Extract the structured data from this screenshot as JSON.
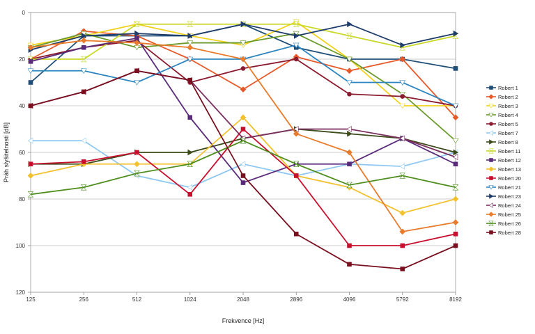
{
  "chart_data": {
    "type": "line",
    "xlabel": "Frekvence [Hz]",
    "ylabel": "Práh slyšitelnosti [dB]",
    "x_tick_labels": [
      "125",
      "256",
      "512",
      "1024",
      "2048",
      "2896",
      "4096",
      "5792",
      "8192"
    ],
    "y_tick_labels": [
      "0",
      "20",
      "40",
      "60",
      "80",
      "100",
      "120"
    ],
    "y_ticks": [
      0,
      20,
      40,
      60,
      80,
      100,
      120
    ],
    "ylim": [
      0,
      120
    ],
    "y_inverted": true,
    "grid": "horizontal",
    "legend_placement": "right",
    "series": [
      {
        "name": "Robert 1",
        "color": "#1F4E79",
        "marker": "square",
        "values": [
          30,
          10,
          10,
          10,
          5,
          15,
          20,
          20,
          24
        ]
      },
      {
        "name": "Robert 2",
        "color": "#E8592A",
        "marker": "diamond",
        "values": [
          20,
          8,
          10,
          20,
          33,
          19,
          25,
          20,
          45
        ]
      },
      {
        "name": "Robert 3",
        "color": "#F2D21E",
        "marker": "triangle",
        "values": [
          14,
          10,
          5,
          10,
          14,
          4,
          20,
          40,
          40
        ]
      },
      {
        "name": "Robert 4",
        "color": "#6A9A2A",
        "marker": "triangle",
        "values": [
          15,
          9,
          15,
          13,
          13,
          9,
          20,
          35,
          55
        ]
      },
      {
        "name": "Robert 5",
        "color": "#8B1A2E",
        "marker": "circle",
        "values": [
          20,
          15,
          12,
          30,
          24,
          20,
          35,
          36,
          40
        ]
      },
      {
        "name": "Robert 7",
        "color": "#8EC8F2",
        "marker": "triangle-left",
        "values": [
          55,
          55,
          70,
          75,
          65,
          70,
          65,
          66,
          60
        ]
      },
      {
        "name": "Robert 8",
        "color": "#3B4A18",
        "marker": "triangle-right",
        "values": [
          65,
          65,
          60,
          60,
          54,
          50,
          52,
          54,
          60
        ]
      },
      {
        "name": "Robert 11",
        "color": "#C9D828",
        "marker": "hourglass",
        "values": [
          20,
          20,
          5,
          5,
          5,
          5,
          10,
          15,
          10
        ]
      },
      {
        "name": "Robert 12",
        "color": "#5A2B7A",
        "marker": "square",
        "values": [
          21,
          15,
          11,
          45,
          73,
          65,
          65,
          54,
          65
        ]
      },
      {
        "name": "Robert 13",
        "color": "#F2C12E",
        "marker": "diamond",
        "values": [
          70,
          65,
          65,
          65,
          45,
          70,
          75,
          86,
          80
        ]
      },
      {
        "name": "Robert 20",
        "color": "#C8102E",
        "marker": "square",
        "values": [
          65,
          64,
          60,
          78,
          50,
          70,
          100,
          100,
          95
        ]
      },
      {
        "name": "Robert 21",
        "color": "#2E86C1",
        "marker": "triangle",
        "values": [
          25,
          25,
          30,
          20,
          20,
          14,
          30,
          30,
          40
        ]
      },
      {
        "name": "Robert 23",
        "color": "#1E3D6B",
        "marker": "triangle-right",
        "values": [
          16,
          10,
          9,
          10,
          5,
          10,
          5,
          14,
          9
        ]
      },
      {
        "name": "Robert 24",
        "color": "#7B2F5F",
        "marker": "triangle-left",
        "values": [
          40,
          34,
          25,
          29,
          54,
          50,
          50,
          54,
          62
        ]
      },
      {
        "name": "Robert 25",
        "color": "#E97B2C",
        "marker": "diamond",
        "values": [
          15,
          12,
          13,
          15,
          20,
          52,
          60,
          94,
          90
        ]
      },
      {
        "name": "Robert 26",
        "color": "#4E8F1E",
        "marker": "hourglass",
        "values": [
          78,
          75,
          69,
          65,
          55,
          65,
          74,
          70,
          75
        ]
      },
      {
        "name": "Robert 28",
        "color": "#7A0F1F",
        "marker": "square",
        "values": [
          40,
          34,
          25,
          29,
          70,
          95,
          108,
          110,
          100
        ]
      }
    ]
  }
}
